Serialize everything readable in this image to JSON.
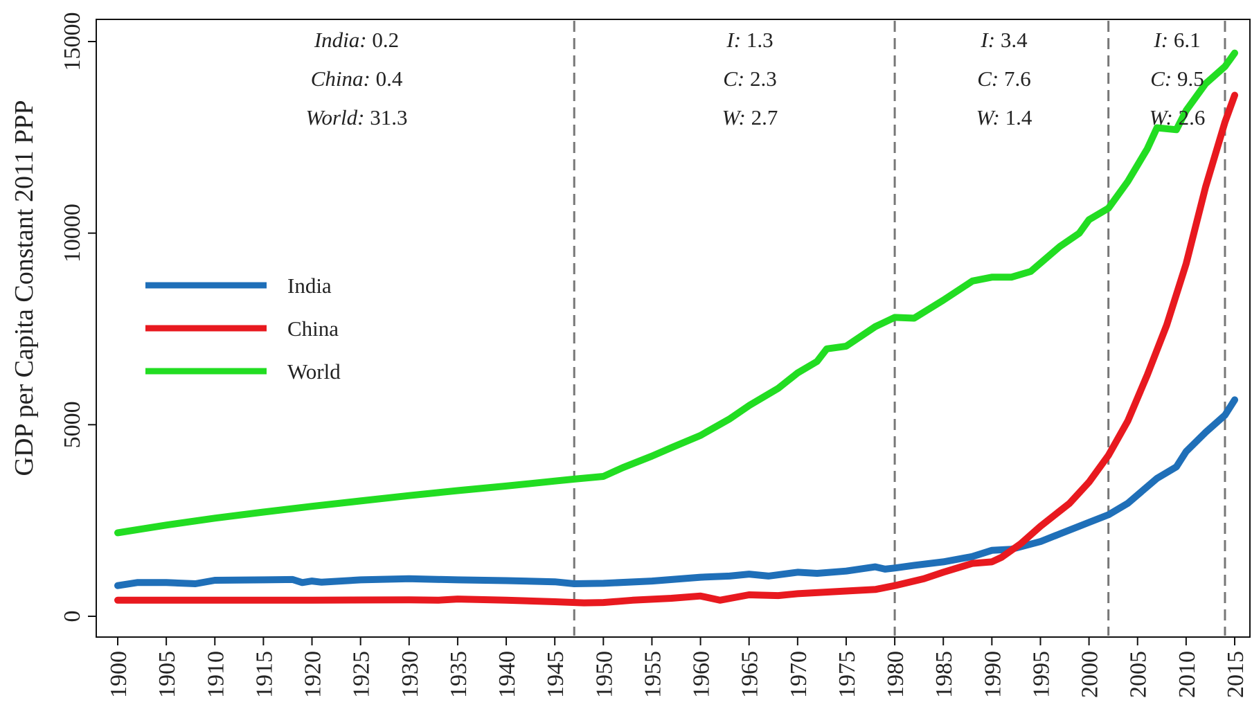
{
  "chart_data": {
    "type": "line",
    "ylabel": "GDP per Capita Constant 2011 PPP",
    "xlim": [
      1900,
      2015
    ],
    "ylim": [
      0,
      15000
    ],
    "x_ticks": [
      1900,
      1905,
      1910,
      1915,
      1920,
      1925,
      1930,
      1935,
      1940,
      1945,
      1950,
      1955,
      1960,
      1965,
      1970,
      1975,
      1980,
      1985,
      1990,
      1995,
      2000,
      2005,
      2010,
      2015
    ],
    "y_ticks": [
      0,
      5000,
      10000,
      15000
    ],
    "grid": false,
    "legend": {
      "placement": "left-middle"
    },
    "breakpoints": [
      1947,
      1980,
      2002,
      2014
    ],
    "period_annotations": [
      {
        "lines": [
          {
            "abbr": "India:",
            "value": "0.2"
          },
          {
            "abbr": "China:",
            "value": "0.4"
          },
          {
            "abbr": "World:",
            "value": "31.3"
          }
        ]
      },
      {
        "lines": [
          {
            "abbr": "I:",
            "value": "1.3"
          },
          {
            "abbr": "C:",
            "value": "2.3"
          },
          {
            "abbr": "W:",
            "value": "2.7"
          }
        ]
      },
      {
        "lines": [
          {
            "abbr": "I:",
            "value": "3.4"
          },
          {
            "abbr": "C:",
            "value": "7.6"
          },
          {
            "abbr": "W:",
            "value": "1.4"
          }
        ]
      },
      {
        "lines": [
          {
            "abbr": "I:",
            "value": "6.1"
          },
          {
            "abbr": "C:",
            "value": "9.5"
          },
          {
            "abbr": "W:",
            "value": "2.6"
          }
        ]
      }
    ],
    "series": [
      {
        "name": "India",
        "color": "#1f6fb8",
        "points": [
          [
            1900,
            800
          ],
          [
            1902,
            880
          ],
          [
            1905,
            880
          ],
          [
            1908,
            850
          ],
          [
            1910,
            940
          ],
          [
            1915,
            950
          ],
          [
            1918,
            960
          ],
          [
            1919,
            880
          ],
          [
            1920,
            920
          ],
          [
            1921,
            890
          ],
          [
            1925,
            950
          ],
          [
            1930,
            980
          ],
          [
            1935,
            950
          ],
          [
            1940,
            930
          ],
          [
            1945,
            900
          ],
          [
            1947,
            850
          ],
          [
            1950,
            860
          ],
          [
            1955,
            920
          ],
          [
            1960,
            1020
          ],
          [
            1963,
            1050
          ],
          [
            1965,
            1100
          ],
          [
            1967,
            1050
          ],
          [
            1970,
            1150
          ],
          [
            1972,
            1120
          ],
          [
            1975,
            1180
          ],
          [
            1978,
            1290
          ],
          [
            1979,
            1230
          ],
          [
            1980,
            1260
          ],
          [
            1982,
            1330
          ],
          [
            1985,
            1420
          ],
          [
            1988,
            1560
          ],
          [
            1990,
            1720
          ],
          [
            1992,
            1750
          ],
          [
            1995,
            1950
          ],
          [
            1997,
            2150
          ],
          [
            2000,
            2450
          ],
          [
            2002,
            2650
          ],
          [
            2004,
            2950
          ],
          [
            2007,
            3600
          ],
          [
            2009,
            3900
          ],
          [
            2010,
            4300
          ],
          [
            2012,
            4800
          ],
          [
            2014,
            5250
          ],
          [
            2015,
            5650
          ]
        ]
      },
      {
        "name": "China",
        "color": "#e8191f",
        "points": [
          [
            1900,
            420
          ],
          [
            1910,
            420
          ],
          [
            1920,
            420
          ],
          [
            1930,
            430
          ],
          [
            1933,
            420
          ],
          [
            1935,
            450
          ],
          [
            1940,
            420
          ],
          [
            1945,
            380
          ],
          [
            1948,
            350
          ],
          [
            1950,
            360
          ],
          [
            1953,
            420
          ],
          [
            1957,
            470
          ],
          [
            1960,
            530
          ],
          [
            1962,
            420
          ],
          [
            1965,
            560
          ],
          [
            1968,
            540
          ],
          [
            1970,
            590
          ],
          [
            1975,
            660
          ],
          [
            1978,
            700
          ],
          [
            1980,
            800
          ],
          [
            1983,
            980
          ],
          [
            1985,
            1150
          ],
          [
            1988,
            1380
          ],
          [
            1990,
            1420
          ],
          [
            1991,
            1540
          ],
          [
            1993,
            1900
          ],
          [
            1995,
            2350
          ],
          [
            1998,
            2950
          ],
          [
            2000,
            3500
          ],
          [
            2002,
            4200
          ],
          [
            2004,
            5100
          ],
          [
            2006,
            6300
          ],
          [
            2008,
            7600
          ],
          [
            2010,
            9200
          ],
          [
            2012,
            11200
          ],
          [
            2014,
            12900
          ],
          [
            2015,
            13600
          ]
        ]
      },
      {
        "name": "World",
        "color": "#22dd22",
        "points": [
          [
            1900,
            2180
          ],
          [
            1905,
            2380
          ],
          [
            1910,
            2560
          ],
          [
            1915,
            2720
          ],
          [
            1920,
            2870
          ],
          [
            1925,
            3010
          ],
          [
            1930,
            3150
          ],
          [
            1935,
            3280
          ],
          [
            1940,
            3400
          ],
          [
            1945,
            3530
          ],
          [
            1947,
            3580
          ],
          [
            1950,
            3650
          ],
          [
            1952,
            3880
          ],
          [
            1955,
            4180
          ],
          [
            1957,
            4400
          ],
          [
            1960,
            4720
          ],
          [
            1963,
            5150
          ],
          [
            1965,
            5500
          ],
          [
            1968,
            5950
          ],
          [
            1970,
            6350
          ],
          [
            1972,
            6650
          ],
          [
            1973,
            6980
          ],
          [
            1975,
            7050
          ],
          [
            1978,
            7560
          ],
          [
            1980,
            7800
          ],
          [
            1982,
            7780
          ],
          [
            1985,
            8250
          ],
          [
            1988,
            8750
          ],
          [
            1990,
            8850
          ],
          [
            1992,
            8850
          ],
          [
            1994,
            9000
          ],
          [
            1997,
            9650
          ],
          [
            1999,
            10000
          ],
          [
            2000,
            10350
          ],
          [
            2002,
            10650
          ],
          [
            2004,
            11350
          ],
          [
            2006,
            12200
          ],
          [
            2007,
            12750
          ],
          [
            2009,
            12700
          ],
          [
            2010,
            13200
          ],
          [
            2012,
            13900
          ],
          [
            2014,
            14350
          ],
          [
            2015,
            14700
          ]
        ]
      }
    ]
  }
}
